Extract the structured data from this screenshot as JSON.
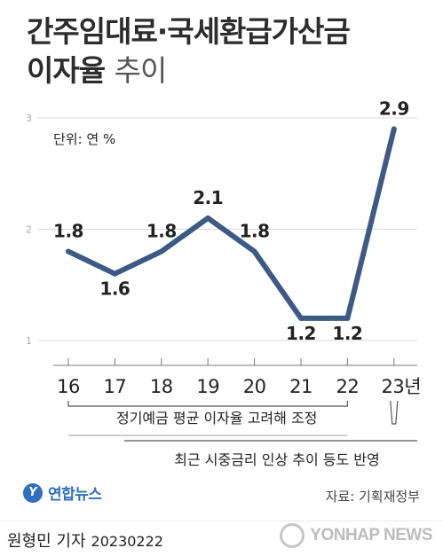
{
  "title": {
    "line1": "간주임대료·국세환급가산금",
    "line2_bold": "이자율",
    "line2_light": "추이"
  },
  "colors": {
    "line": "#3d5a85",
    "grid": "#d9d9d9",
    "text": "#222222",
    "bracket": "#555555"
  },
  "chart_data": {
    "type": "line",
    "unit": "단위: 연 %",
    "categories": [
      "16",
      "17",
      "18",
      "19",
      "20",
      "21",
      "22",
      "23년"
    ],
    "values": [
      1.8,
      1.6,
      1.8,
      2.1,
      1.8,
      1.2,
      1.2,
      2.9
    ],
    "value_labels": [
      "1.8",
      "1.6",
      "1.8",
      "2.1",
      "1.8",
      "1.2",
      "1.2",
      "2.9"
    ],
    "yticks": [
      "1",
      "2",
      "3"
    ],
    "ylim": [
      1,
      3
    ]
  },
  "annotations": {
    "bracket1": "정기예금 평균 이자율 고려해 조정",
    "bracket2": "최근 시중금리 인상 추이 등도 반영"
  },
  "footer": {
    "logo_mark": "Y",
    "logo_text": "연합뉴스",
    "source": "자료: 기획재정부",
    "reporter": "원형민 기자",
    "date": "20230222",
    "agency": "YONHAP NEWS"
  }
}
